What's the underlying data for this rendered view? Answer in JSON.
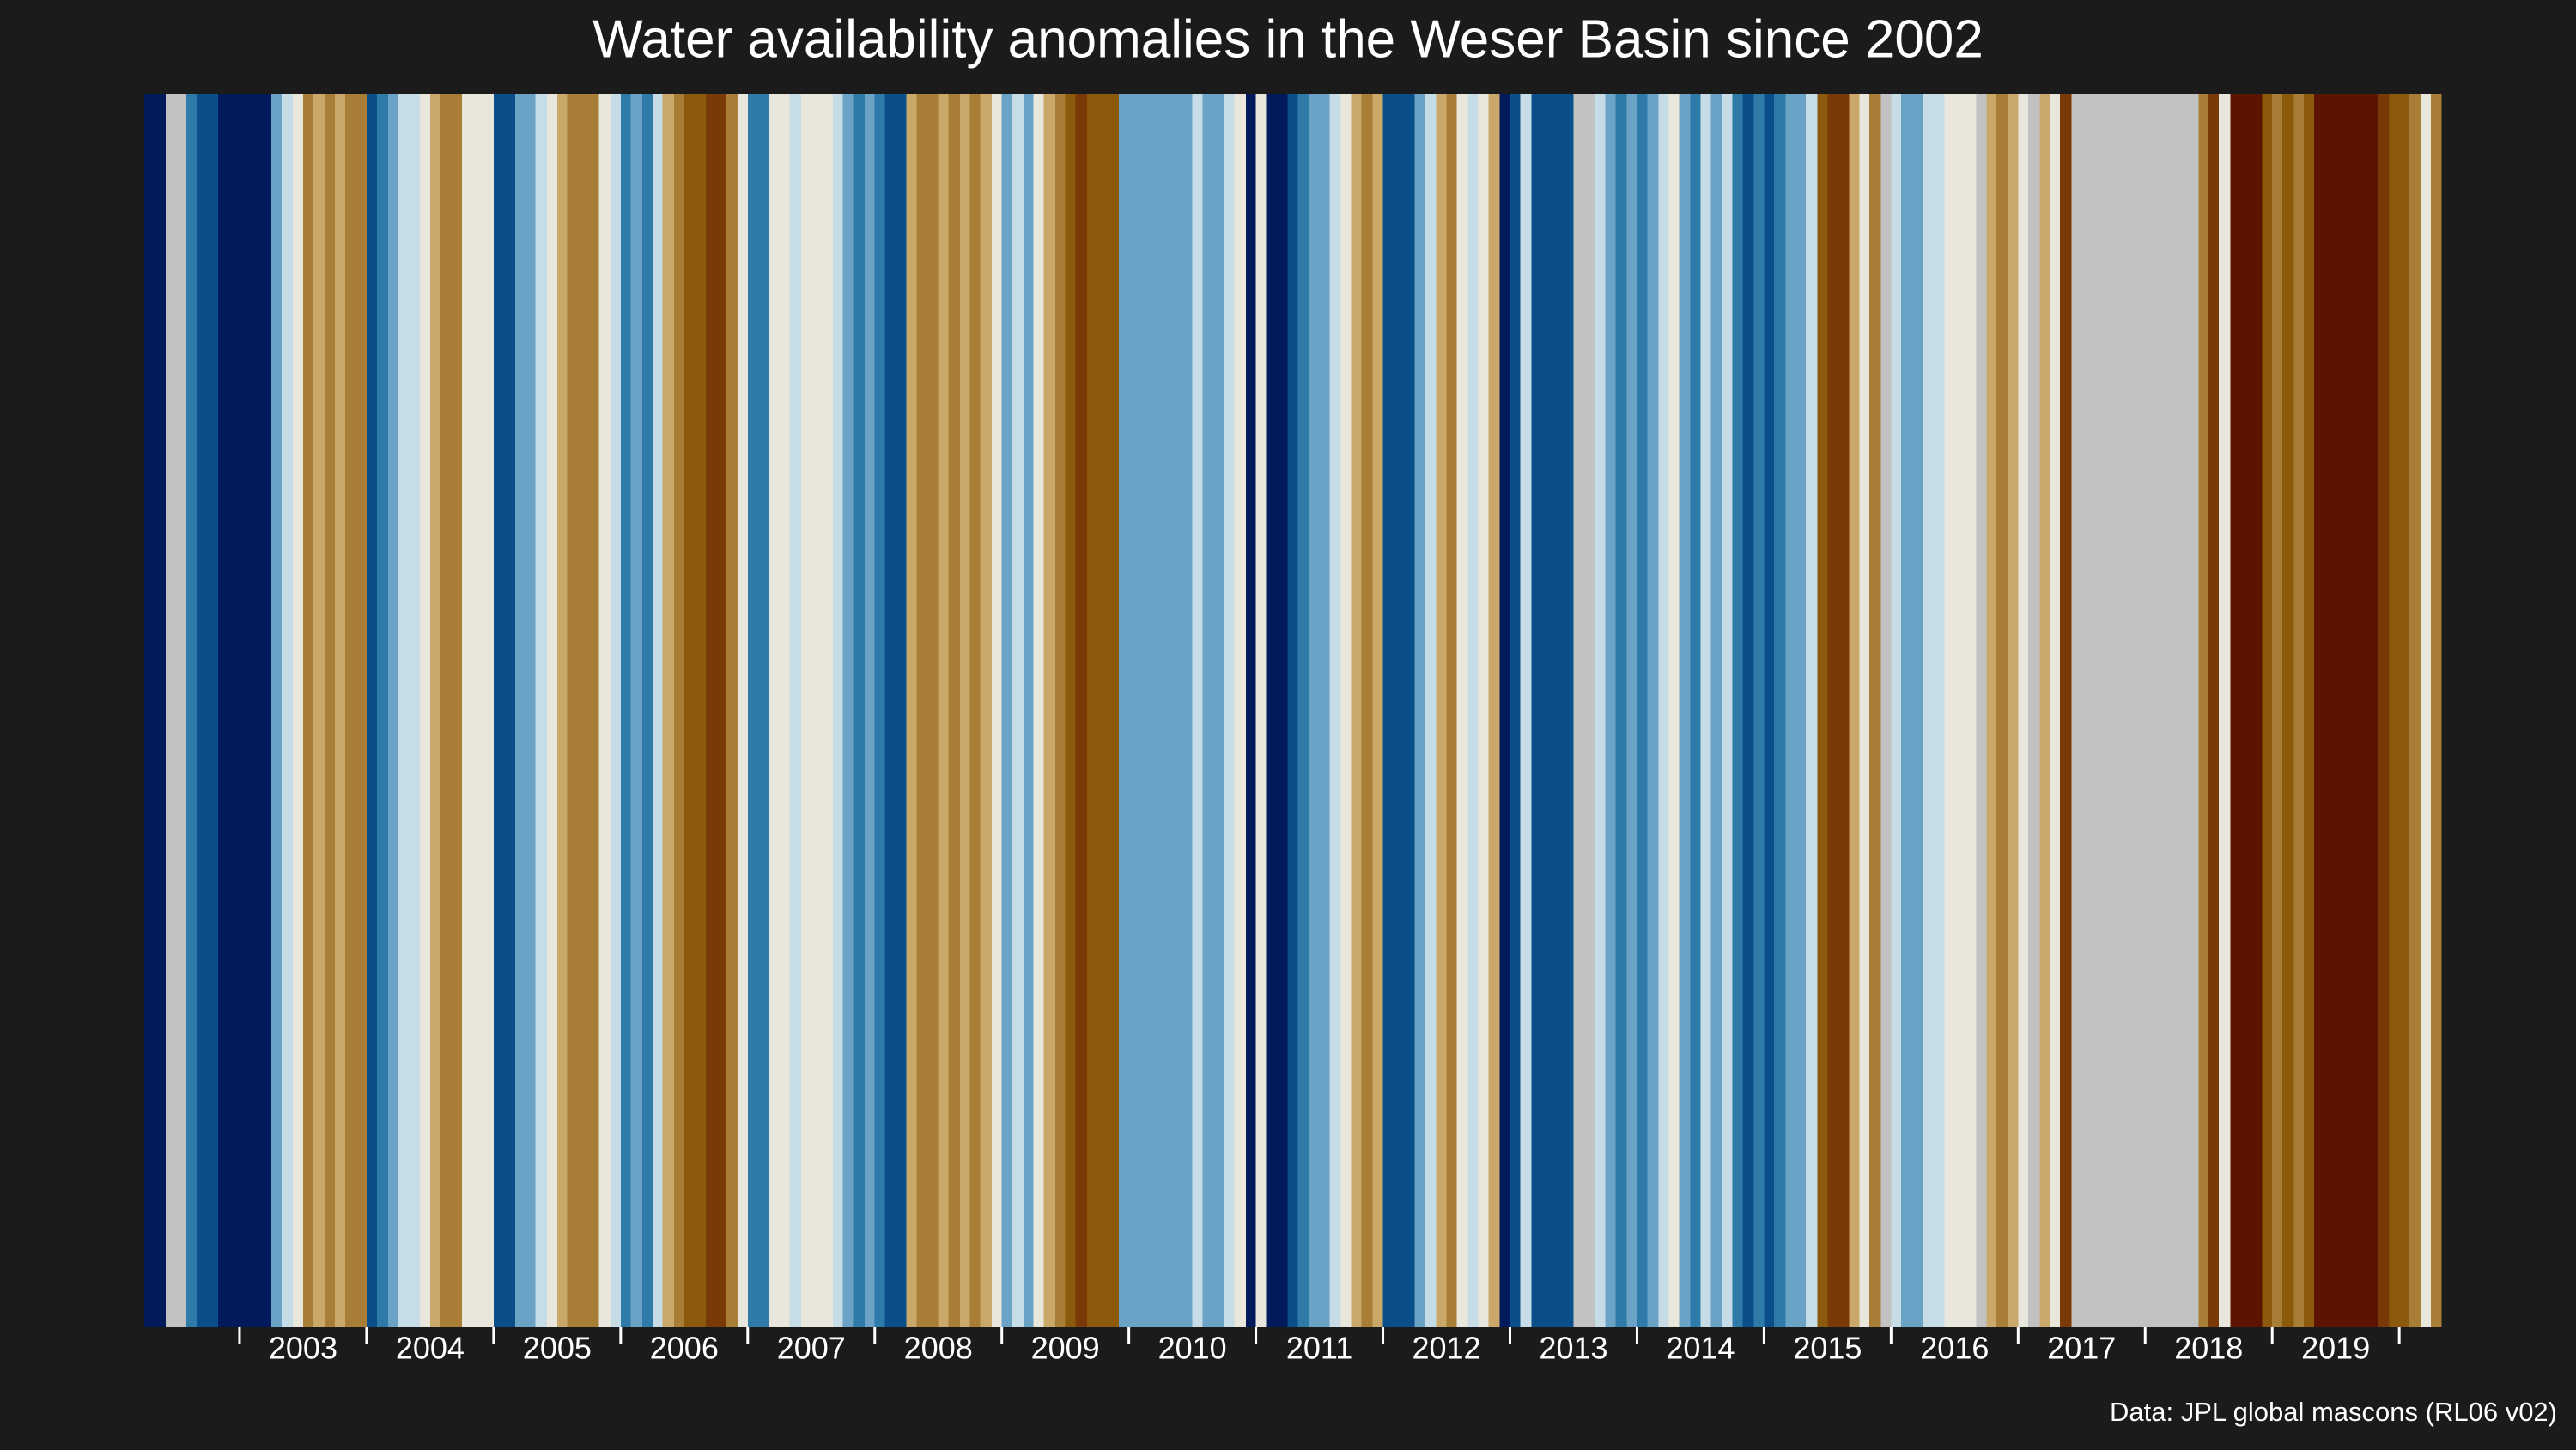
{
  "chart_data": {
    "type": "stripes",
    "title": "Water availability anomalies in the Weser Basin since 2002",
    "caption": "Data: JPL global mascons (RL06 v02)",
    "xlim": [
      2002.25,
      2020.33
    ],
    "xticks": [
      2003,
      2004,
      2005,
      2006,
      2007,
      2008,
      2009,
      2010,
      2011,
      2012,
      2013,
      2014,
      2015,
      2016,
      2017,
      2018,
      2019
    ],
    "vlim": [
      -1,
      1
    ],
    "colorscale": [
      "#5c1400",
      "#7a3a08",
      "#8b5a0c",
      "#a87d35",
      "#c9a86a",
      "#e9e6dc",
      "#c6dde8",
      "#6aa3c5",
      "#2e7aa8",
      "#0a4f8a",
      "#011a5c"
    ],
    "missing_color": "#c2c2c2",
    "x": [
      2002.25,
      2002.33,
      2002.42,
      2002.5,
      2002.58,
      2002.67,
      2002.75,
      2002.83,
      2002.92,
      2003.0,
      2003.08,
      2003.17,
      2003.25,
      2003.33,
      2003.42,
      2003.5,
      2003.58,
      2003.67,
      2003.75,
      2003.83,
      2003.92,
      2004.0,
      2004.08,
      2004.17,
      2004.25,
      2004.33,
      2004.42,
      2004.5,
      2004.58,
      2004.67,
      2004.75,
      2004.83,
      2004.92,
      2005.0,
      2005.08,
      2005.17,
      2005.25,
      2005.33,
      2005.42,
      2005.5,
      2005.58,
      2005.67,
      2005.75,
      2005.83,
      2005.92,
      2006.0,
      2006.08,
      2006.17,
      2006.25,
      2006.33,
      2006.42,
      2006.5,
      2006.58,
      2006.67,
      2006.75,
      2006.83,
      2006.92,
      2007.0,
      2007.08,
      2007.17,
      2007.25,
      2007.33,
      2007.42,
      2007.5,
      2007.58,
      2007.67,
      2007.75,
      2007.83,
      2007.92,
      2008.0,
      2008.08,
      2008.17,
      2008.25,
      2008.33,
      2008.42,
      2008.5,
      2008.58,
      2008.67,
      2008.75,
      2008.83,
      2008.92,
      2009.0,
      2009.08,
      2009.17,
      2009.25,
      2009.33,
      2009.42,
      2009.5,
      2009.58,
      2009.67,
      2009.75,
      2009.83,
      2009.92,
      2010.0,
      2010.08,
      2010.17,
      2010.25,
      2010.33,
      2010.42,
      2010.5,
      2010.58,
      2010.67,
      2010.75,
      2010.83,
      2010.92,
      2011.0,
      2011.08,
      2011.17,
      2011.25,
      2011.33,
      2011.42,
      2011.5,
      2011.58,
      2011.67,
      2011.75,
      2011.83,
      2011.92,
      2012.0,
      2012.08,
      2012.17,
      2012.25,
      2012.33,
      2012.42,
      2012.5,
      2012.58,
      2012.67,
      2012.75,
      2012.83,
      2012.92,
      2013.0,
      2013.08,
      2013.17,
      2013.25,
      2013.33,
      2013.42,
      2013.5,
      2013.58,
      2013.67,
      2013.75,
      2013.83,
      2013.92,
      2014.0,
      2014.08,
      2014.17,
      2014.25,
      2014.33,
      2014.42,
      2014.5,
      2014.58,
      2014.67,
      2014.75,
      2014.83,
      2014.92,
      2015.0,
      2015.08,
      2015.17,
      2015.25,
      2015.33,
      2015.42,
      2015.5,
      2015.58,
      2015.67,
      2015.75,
      2015.83,
      2015.92,
      2016.0,
      2016.08,
      2016.17,
      2016.25,
      2016.33,
      2016.42,
      2016.5,
      2016.58,
      2016.67,
      2016.75,
      2016.83,
      2016.92,
      2017.0,
      2017.08,
      2017.17,
      2017.25,
      2017.33,
      2017.42,
      2017.5,
      2017.58,
      2017.67,
      2017.75,
      2017.83,
      2017.92,
      2018.0,
      2018.08,
      2018.17,
      2018.25,
      2018.33,
      2018.42,
      2018.5,
      2018.58,
      2018.67,
      2018.75,
      2018.83,
      2018.92,
      2019.0,
      2019.08,
      2019.17,
      2019.25,
      2019.33,
      2019.42,
      2019.5,
      2019.58,
      2019.67,
      2019.75,
      2019.83,
      2019.92,
      2020.0,
      2020.08,
      2020.17,
      2020.25
    ],
    "values": [
      1,
      1,
      null,
      null,
      0.6,
      0.8,
      0.8,
      1,
      1,
      1,
      1,
      1,
      0.4,
      0.2,
      0,
      -0.4,
      -0.2,
      -0.4,
      -0.2,
      -0.4,
      -0.4,
      0.8,
      0.6,
      0.4,
      0.2,
      0.2,
      0,
      -0.2,
      -0.4,
      -0.4,
      0,
      0,
      0,
      0.8,
      0.8,
      0.4,
      0.4,
      0.2,
      0,
      -0.2,
      -0.4,
      -0.4,
      -0.4,
      0,
      0.2,
      0.6,
      0.4,
      0.6,
      0.2,
      -0.2,
      -0.4,
      -0.6,
      -0.6,
      -0.8,
      -0.8,
      -0.4,
      0,
      0.6,
      0.6,
      0,
      0,
      0.2,
      0,
      0,
      0,
      0.2,
      0.4,
      0.6,
      0.4,
      0.6,
      0.8,
      0.8,
      -0.2,
      -0.4,
      -0.4,
      -0.2,
      -0.4,
      -0.2,
      -0.4,
      -0.2,
      0,
      0.4,
      0.2,
      0.4,
      0,
      -0.2,
      -0.4,
      -0.6,
      -0.8,
      -0.6,
      -0.6,
      -0.6,
      0.4,
      0.4,
      0.4,
      0.4,
      0.4,
      0.4,
      0.4,
      0.2,
      0.4,
      0.4,
      0.2,
      0,
      1,
      0,
      1,
      1,
      0.8,
      0.6,
      0.4,
      0.4,
      0.2,
      0,
      -0.2,
      -0.4,
      -0.2,
      0.8,
      0.8,
      0.8,
      0.4,
      0.2,
      -0.2,
      -0.4,
      0,
      0.2,
      0,
      -0.2,
      1,
      0.8,
      0.2,
      0.8,
      0.8,
      0.8,
      0.8,
      null,
      null,
      0.2,
      0.4,
      0.6,
      0.4,
      0.6,
      0.4,
      0.2,
      0,
      0.4,
      0.6,
      0.2,
      0.4,
      0.2,
      0.6,
      0.8,
      0.6,
      0.8,
      0.6,
      0.4,
      0.4,
      0.2,
      -0.6,
      -0.8,
      -0.8,
      -0.2,
      0,
      -0.4,
      null,
      0.2,
      0.4,
      0.4,
      0.2,
      0.2,
      0,
      0,
      0,
      null,
      -0.2,
      -0.4,
      -0.2,
      0,
      null,
      -0.2,
      0,
      -0.8,
      null,
      null,
      null,
      null,
      null,
      null,
      null,
      null,
      null,
      null,
      null,
      null,
      -0.4,
      -0.8,
      0,
      -1,
      -1,
      -1,
      -0.6,
      -0.4,
      -0.6,
      -0.4,
      -0.6,
      -1,
      -1,
      -1,
      -1,
      -1,
      -1,
      -0.8,
      -0.6,
      -0.6,
      -0.4,
      0,
      -0.4
    ]
  }
}
